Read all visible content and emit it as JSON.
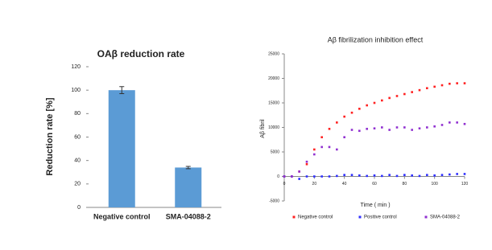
{
  "chart_data": [
    {
      "type": "bar",
      "title": "OAβ reduction rate",
      "y_label": "Reduction rate [%]",
      "categories": [
        "Negative control",
        "SMA-04088-2"
      ],
      "values": [
        100,
        34
      ],
      "errors": [
        3,
        1
      ],
      "color": "#5b9bd5",
      "ylim": [
        0,
        120
      ],
      "yticks": [
        0,
        20,
        40,
        60,
        80,
        100,
        120
      ]
    },
    {
      "type": "scatter",
      "title": "Aβ fibrilization inhibition effect",
      "x_label": "Time ( min )",
      "y_label": "Aβ fibril",
      "x": [
        0,
        5,
        10,
        15,
        20,
        25,
        30,
        35,
        40,
        45,
        50,
        55,
        60,
        65,
        70,
        75,
        80,
        85,
        90,
        95,
        100,
        105,
        110,
        115,
        120
      ],
      "series": [
        {
          "name": "Negative control",
          "color": "#ff2020",
          "values": [
            0,
            0,
            1000,
            2500,
            5500,
            8000,
            9700,
            11000,
            12200,
            13000,
            13800,
            14500,
            15000,
            15500,
            16000,
            16400,
            16800,
            17200,
            17600,
            18000,
            18300,
            18600,
            18900,
            19000,
            19000
          ]
        },
        {
          "name": "Positive control",
          "color": "#3030ff",
          "values": [
            0,
            0,
            -500,
            0,
            0,
            0,
            0,
            100,
            300,
            300,
            200,
            100,
            200,
            100,
            300,
            100,
            300,
            200,
            100,
            300,
            200,
            300,
            400,
            500,
            500
          ]
        },
        {
          "name": "SMA-04088-2",
          "color": "#9030d0",
          "values": [
            0,
            0,
            1000,
            3000,
            4500,
            6000,
            6000,
            5500,
            8000,
            9500,
            9300,
            9700,
            9800,
            10000,
            9500,
            10000,
            10000,
            9500,
            9800,
            10000,
            10200,
            10500,
            11000,
            11000,
            10700
          ]
        }
      ],
      "xlim": [
        0,
        120
      ],
      "xticks": [
        0,
        20,
        40,
        60,
        80,
        100,
        120
      ],
      "ylim": [
        -5000,
        25000
      ],
      "yticks": [
        -5000,
        0,
        5000,
        10000,
        15000,
        20000,
        25000
      ],
      "legend": "bottom"
    }
  ]
}
